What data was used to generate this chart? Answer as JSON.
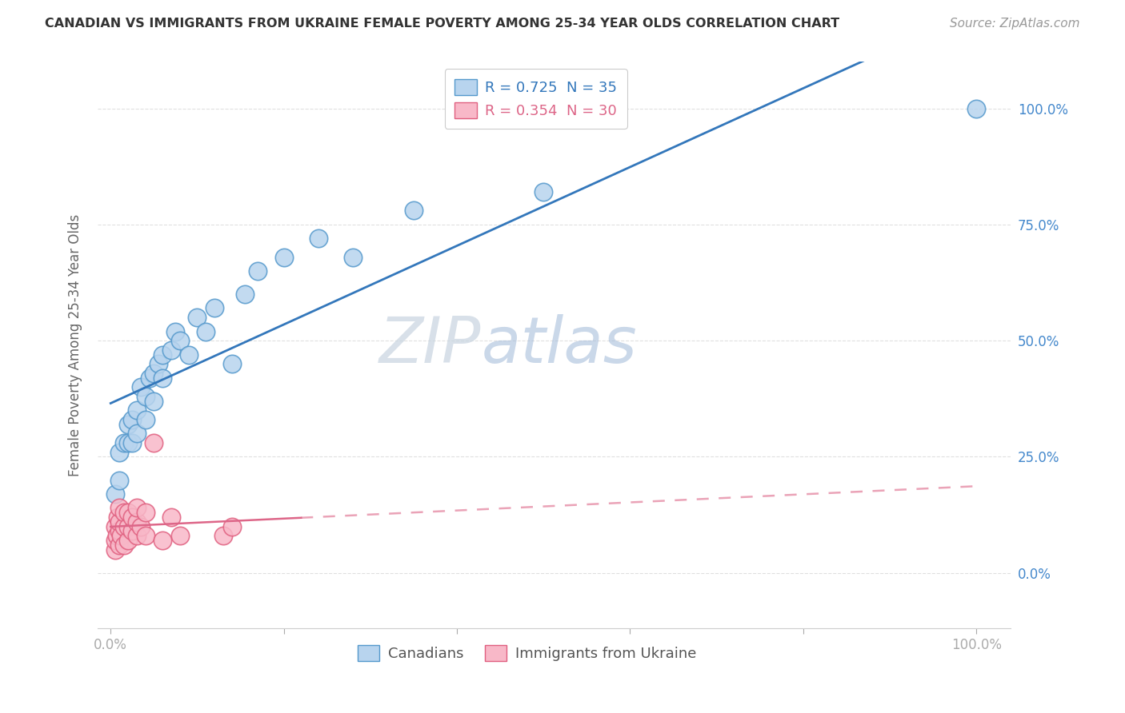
{
  "title": "CANADIAN VS IMMIGRANTS FROM UKRAINE FEMALE POVERTY AMONG 25-34 YEAR OLDS CORRELATION CHART",
  "source": "Source: ZipAtlas.com",
  "ylabel": "Female Poverty Among 25-34 Year Olds",
  "R_canadian": 0.725,
  "N_canadian": 35,
  "R_ukraine": 0.354,
  "N_ukraine": 30,
  "color_canadian_face": "#b8d4ee",
  "color_canadian_edge": "#5599cc",
  "color_ukraine_face": "#f8b8c8",
  "color_ukraine_edge": "#e06080",
  "line_color_canadian": "#3377bb",
  "line_color_ukraine": "#dd6688",
  "watermark_zip_color": "#c8d8e8",
  "watermark_atlas_color": "#a8c8e8",
  "background_color": "#ffffff",
  "grid_color": "#dddddd",
  "legend_entries": [
    "Canadians",
    "Immigrants from Ukraine"
  ],
  "canadian_x": [
    0.005,
    0.01,
    0.01,
    0.015,
    0.02,
    0.02,
    0.025,
    0.025,
    0.03,
    0.03,
    0.035,
    0.04,
    0.04,
    0.045,
    0.05,
    0.05,
    0.055,
    0.06,
    0.06,
    0.07,
    0.075,
    0.08,
    0.09,
    0.1,
    0.11,
    0.12,
    0.14,
    0.155,
    0.17,
    0.2,
    0.24,
    0.28,
    0.35,
    0.5,
    1.0
  ],
  "canadian_y": [
    0.17,
    0.2,
    0.26,
    0.28,
    0.28,
    0.32,
    0.28,
    0.33,
    0.3,
    0.35,
    0.4,
    0.33,
    0.38,
    0.42,
    0.37,
    0.43,
    0.45,
    0.42,
    0.47,
    0.48,
    0.52,
    0.5,
    0.47,
    0.55,
    0.52,
    0.57,
    0.45,
    0.6,
    0.65,
    0.68,
    0.72,
    0.68,
    0.78,
    0.82,
    1.0
  ],
  "ukraine_x": [
    0.005,
    0.005,
    0.005,
    0.007,
    0.008,
    0.01,
    0.01,
    0.01,
    0.01,
    0.012,
    0.015,
    0.015,
    0.015,
    0.02,
    0.02,
    0.02,
    0.025,
    0.025,
    0.03,
    0.03,
    0.03,
    0.035,
    0.04,
    0.04,
    0.05,
    0.06,
    0.07,
    0.08,
    0.13,
    0.14
  ],
  "ukraine_y": [
    0.05,
    0.07,
    0.1,
    0.08,
    0.12,
    0.06,
    0.09,
    0.11,
    0.14,
    0.08,
    0.06,
    0.1,
    0.13,
    0.07,
    0.1,
    0.13,
    0.09,
    0.12,
    0.08,
    0.11,
    0.14,
    0.1,
    0.08,
    0.13,
    0.28,
    0.07,
    0.12,
    0.08,
    0.08,
    0.1
  ],
  "xlim_min": -0.015,
  "xlim_max": 1.04,
  "ylim_min": -0.12,
  "ylim_max": 1.1
}
